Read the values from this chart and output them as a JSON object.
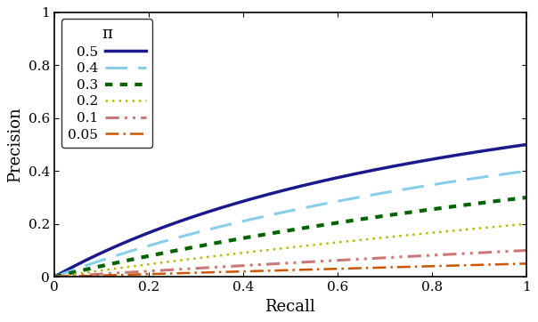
{
  "pi_values": [
    0.5,
    0.4,
    0.3,
    0.2,
    0.1,
    0.05
  ],
  "line_styles": [
    {
      "color": "#1a1a8c",
      "linestyle": "-",
      "linewidth": 2.5,
      "label": "0.5",
      "dashes": null
    },
    {
      "color": "#87ceeb",
      "linestyle": "--",
      "linewidth": 2.2,
      "label": "0.4",
      "dashes": [
        8,
        4
      ]
    },
    {
      "color": "#006400",
      "linestyle": ":",
      "linewidth": 3.0,
      "label": "0.3",
      "dashes": [
        2,
        2
      ]
    },
    {
      "color": "#b8b800",
      "linestyle": ":",
      "linewidth": 1.8,
      "label": "0.2",
      "dashes": [
        1,
        2
      ]
    },
    {
      "color": "#cc7777",
      "linestyle": "-.",
      "linewidth": 2.2,
      "label": "0.1",
      "dashes": [
        5,
        2,
        1,
        2,
        1,
        2
      ]
    },
    {
      "color": "#cc5500",
      "linestyle": "-.",
      "linewidth": 1.8,
      "label": "0.05",
      "dashes": [
        6,
        2,
        1,
        2
      ]
    }
  ],
  "xlabel": "Recall",
  "ylabel": "Precision",
  "xlim": [
    0,
    1
  ],
  "ylim": [
    0,
    1
  ],
  "xticks": [
    0,
    0.2,
    0.4,
    0.6,
    0.8,
    1
  ],
  "yticks": [
    0,
    0.2,
    0.4,
    0.6,
    0.8,
    1
  ],
  "legend_title": "π",
  "legend_loc": "upper left",
  "figsize": [
    6.04,
    3.62
  ],
  "dpi": 100
}
